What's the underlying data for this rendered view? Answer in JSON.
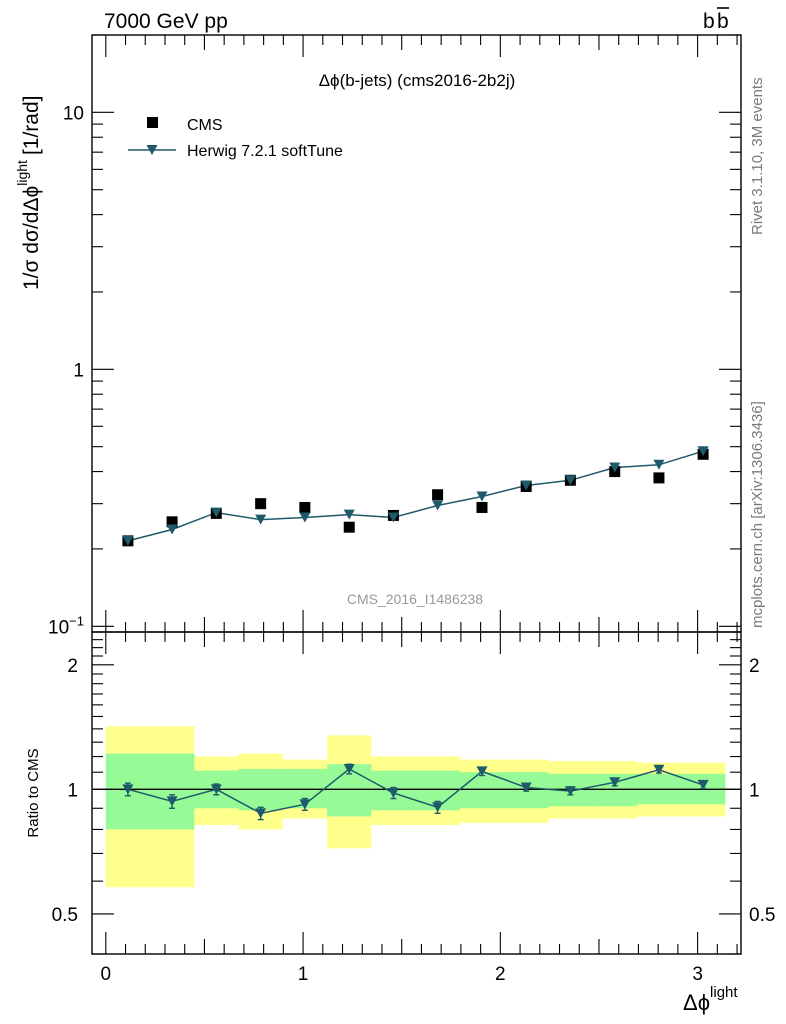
{
  "header": {
    "energy_label": "7000 GeV pp",
    "process_label_base": "b",
    "process_label_bar": "b"
  },
  "side": {
    "rivet_label": "Rivet 3.1.10,  3M events",
    "mcplots_label": "mcplots.cern.ch [arXiv:1306.3436]"
  },
  "chart_data": [
    {
      "type": "scatter",
      "panel": "main",
      "title": "Δϕ(b-jets) (cms2016-2b2j)",
      "watermark": "CMS_2016_I1486238",
      "ylabel": {
        "main": "1/σ dσ/dΔϕ",
        "superscript": "light",
        "unit": "[1/rad]"
      },
      "yscale": "log",
      "ylim": [
        0.095,
        20
      ],
      "xlim": [
        -0.07,
        3.22
      ],
      "y_ticks": [
        {
          "value": 10,
          "base": "10",
          "exp": ""
        },
        {
          "value": 1,
          "base": "1",
          "exp": ""
        },
        {
          "value": 0.1,
          "base": "10",
          "exp": "−1"
        }
      ],
      "legend": {
        "placement": "top-left",
        "entries": [
          "CMS",
          "Herwig 7.2.1 softTune"
        ]
      },
      "x": [
        0.112,
        0.336,
        0.56,
        0.785,
        1.009,
        1.234,
        1.458,
        1.682,
        1.907,
        2.131,
        2.355,
        2.58,
        2.804,
        3.028
      ],
      "series": [
        {
          "name": "CMS",
          "marker": "square",
          "color": "#000000",
          "values": [
            0.215,
            0.255,
            0.275,
            0.3,
            0.29,
            0.243,
            0.27,
            0.325,
            0.29,
            0.35,
            0.37,
            0.4,
            0.378,
            0.467
          ]
        },
        {
          "name": "Herwig 7.2.1 softTune",
          "marker": "triangle-down",
          "color": "#1f5a6b",
          "values": [
            0.215,
            0.238,
            0.277,
            0.26,
            0.265,
            0.272,
            0.265,
            0.295,
            0.32,
            0.353,
            0.37,
            0.415,
            0.425,
            0.48
          ]
        }
      ]
    },
    {
      "type": "line",
      "panel": "ratio",
      "ylabel": "Ratio to CMS",
      "xlabel": {
        "main": "Δϕ",
        "superscript": "light"
      },
      "yscale": "log",
      "ylim": [
        0.4,
        2.4
      ],
      "xlim": [
        -0.07,
        3.22
      ],
      "x_ticks": [
        0,
        1,
        2,
        3
      ],
      "y_ticks": [
        0.5,
        1,
        2
      ],
      "reference_line": 1,
      "bins": [
        0,
        0.449,
        0.673,
        0.897,
        1.122,
        1.346,
        1.795,
        2.244,
        2.468,
        2.692,
        3.141
      ],
      "band_inner": [
        [
          0.8,
          1.22
        ],
        [
          0.9,
          1.11
        ],
        [
          0.89,
          1.12
        ],
        [
          0.9,
          1.12
        ],
        [
          0.86,
          1.15
        ],
        [
          0.89,
          1.11
        ],
        [
          0.9,
          1.1
        ],
        [
          0.91,
          1.09
        ],
        [
          0.91,
          1.09
        ],
        [
          0.92,
          1.09
        ]
      ],
      "band_outer": [
        [
          0.58,
          1.42
        ],
        [
          0.82,
          1.2
        ],
        [
          0.8,
          1.22
        ],
        [
          0.85,
          1.18
        ],
        [
          0.72,
          1.35
        ],
        [
          0.82,
          1.2
        ],
        [
          0.83,
          1.18
        ],
        [
          0.85,
          1.17
        ],
        [
          0.85,
          1.17
        ],
        [
          0.86,
          1.16
        ]
      ],
      "x": [
        0.112,
        0.336,
        0.56,
        0.785,
        1.009,
        1.234,
        1.458,
        1.682,
        1.907,
        2.131,
        2.355,
        2.58,
        2.804,
        3.028
      ],
      "series": [
        {
          "name": "Herwig 7.2.1 softTune",
          "color": "#1f5a6b",
          "values": [
            1.0,
            0.935,
            1.0,
            0.875,
            0.92,
            1.12,
            0.98,
            0.905,
            1.105,
            1.01,
            0.99,
            1.04,
            1.115,
            1.025
          ],
          "errors": [
            0.035,
            0.035,
            0.03,
            0.03,
            0.03,
            0.03,
            0.03,
            0.03,
            0.025,
            0.02,
            0.02,
            0.02,
            0.02,
            0.02
          ]
        }
      ]
    }
  ]
}
